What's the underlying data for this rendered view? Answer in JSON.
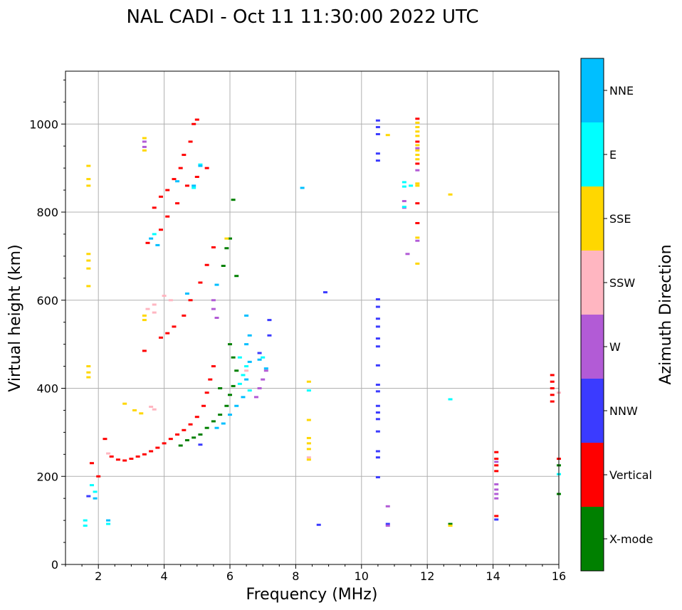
{
  "chart_data": {
    "type": "scatter",
    "title": "NAL CADI - Oct 11 11:30:00 2022 UTC",
    "xlabel": "Frequency (MHz)",
    "ylabel": "Virtual height (km)",
    "xlim": [
      1,
      16
    ],
    "ylim": [
      0,
      1120
    ],
    "xticks": [
      2,
      4,
      6,
      8,
      10,
      12,
      14,
      16
    ],
    "yticks": [
      0,
      200,
      400,
      600,
      800,
      1000
    ],
    "grid": true,
    "colorbar": {
      "title": "Azimuth Direction",
      "categories": [
        {
          "name": "X-mode",
          "color": "#008000"
        },
        {
          "name": "Vertical",
          "color": "#ff0000"
        },
        {
          "name": "NNW",
          "color": "#3b3bff"
        },
        {
          "name": "W",
          "color": "#b25bd6"
        },
        {
          "name": "SSW",
          "color": "#ffb6c1"
        },
        {
          "name": "SSE",
          "color": "#ffd700"
        },
        {
          "name": "E",
          "color": "#00ffff"
        },
        {
          "name": "NNE",
          "color": "#00bfff"
        }
      ]
    },
    "series": [
      {
        "name": "Vertical",
        "color": "#ff0000",
        "points": [
          [
            2.2,
            285
          ],
          [
            2.4,
            245
          ],
          [
            2.6,
            238
          ],
          [
            2.8,
            236
          ],
          [
            3.0,
            240
          ],
          [
            3.2,
            245
          ],
          [
            3.4,
            250
          ],
          [
            3.6,
            257
          ],
          [
            3.8,
            265
          ],
          [
            4.0,
            275
          ],
          [
            4.2,
            285
          ],
          [
            4.4,
            295
          ],
          [
            4.6,
            305
          ],
          [
            4.8,
            318
          ],
          [
            5.0,
            335
          ],
          [
            5.2,
            360
          ],
          [
            5.3,
            390
          ],
          [
            5.4,
            420
          ],
          [
            5.5,
            450
          ],
          [
            3.4,
            485
          ],
          [
            3.9,
            515
          ],
          [
            4.1,
            525
          ],
          [
            4.3,
            540
          ],
          [
            4.6,
            565
          ],
          [
            4.8,
            600
          ],
          [
            5.1,
            640
          ],
          [
            5.3,
            680
          ],
          [
            5.5,
            720
          ],
          [
            3.5,
            730
          ],
          [
            3.9,
            760
          ],
          [
            4.1,
            790
          ],
          [
            4.4,
            820
          ],
          [
            4.7,
            860
          ],
          [
            5.0,
            880
          ],
          [
            5.3,
            900
          ],
          [
            3.7,
            810
          ],
          [
            3.9,
            835
          ],
          [
            4.1,
            850
          ],
          [
            4.3,
            875
          ],
          [
            4.5,
            900
          ],
          [
            4.6,
            930
          ],
          [
            4.8,
            960
          ],
          [
            4.9,
            1000
          ],
          [
            5.0,
            1010
          ],
          [
            11.7,
            1012
          ],
          [
            11.7,
            960
          ],
          [
            11.7,
            910
          ],
          [
            11.7,
            820
          ],
          [
            11.7,
            775
          ],
          [
            14.1,
            255
          ],
          [
            14.1,
            240
          ],
          [
            14.1,
            225
          ],
          [
            14.1,
            212
          ],
          [
            14.1,
            110
          ],
          [
            15.8,
            430
          ],
          [
            15.8,
            415
          ],
          [
            15.8,
            400
          ],
          [
            15.8,
            385
          ],
          [
            15.8,
            370
          ],
          [
            16.0,
            240
          ],
          [
            2.0,
            200
          ],
          [
            1.8,
            230
          ]
        ]
      },
      {
        "name": "X-mode",
        "color": "#008000",
        "points": [
          [
            4.5,
            270
          ],
          [
            4.7,
            282
          ],
          [
            4.9,
            288
          ],
          [
            5.1,
            295
          ],
          [
            5.3,
            310
          ],
          [
            5.5,
            325
          ],
          [
            5.7,
            340
          ],
          [
            5.9,
            360
          ],
          [
            6.0,
            385
          ],
          [
            6.1,
            405
          ],
          [
            6.2,
            440
          ],
          [
            6.1,
            470
          ],
          [
            6.0,
            500
          ],
          [
            6.0,
            740
          ],
          [
            5.9,
            718
          ],
          [
            5.8,
            678
          ],
          [
            6.1,
            828
          ],
          [
            6.2,
            655
          ],
          [
            12.7,
            92
          ],
          [
            16.0,
            160
          ],
          [
            16.0,
            225
          ],
          [
            5.7,
            400
          ]
        ]
      },
      {
        "name": "NNW",
        "color": "#3b3bff",
        "points": [
          [
            10.5,
            1008
          ],
          [
            10.5,
            993
          ],
          [
            10.5,
            977
          ],
          [
            10.5,
            933
          ],
          [
            10.5,
            917
          ],
          [
            10.5,
            602
          ],
          [
            10.5,
            585
          ],
          [
            10.5,
            558
          ],
          [
            10.5,
            540
          ],
          [
            10.5,
            513
          ],
          [
            10.5,
            495
          ],
          [
            10.5,
            452
          ],
          [
            10.5,
            408
          ],
          [
            10.5,
            393
          ],
          [
            10.5,
            360
          ],
          [
            10.5,
            345
          ],
          [
            10.5,
            330
          ],
          [
            10.5,
            302
          ],
          [
            10.5,
            257
          ],
          [
            10.5,
            243
          ],
          [
            10.5,
            198
          ],
          [
            8.9,
            618
          ],
          [
            8.7,
            90
          ],
          [
            14.1,
            102
          ],
          [
            7.2,
            555
          ],
          [
            7.2,
            520
          ],
          [
            6.9,
            480
          ],
          [
            5.1,
            272
          ],
          [
            1.7,
            155
          ],
          [
            10.8,
            92
          ]
        ]
      },
      {
        "name": "W",
        "color": "#b25bd6",
        "points": [
          [
            5.5,
            600
          ],
          [
            5.5,
            580
          ],
          [
            5.6,
            560
          ],
          [
            6.8,
            380
          ],
          [
            6.9,
            400
          ],
          [
            7.0,
            420
          ],
          [
            7.1,
            440
          ],
          [
            11.3,
            825
          ],
          [
            11.3,
            810
          ],
          [
            11.4,
            705
          ],
          [
            11.7,
            945
          ],
          [
            11.7,
            895
          ],
          [
            11.7,
            735
          ],
          [
            14.1,
            182
          ],
          [
            14.1,
            170
          ],
          [
            14.1,
            160
          ],
          [
            14.1,
            150
          ],
          [
            14.1,
            233
          ],
          [
            10.8,
            132
          ],
          [
            10.8,
            88
          ],
          [
            3.4,
            960
          ],
          [
            3.4,
            948
          ]
        ]
      },
      {
        "name": "SSW",
        "color": "#ffb6c1",
        "points": [
          [
            3.5,
            580
          ],
          [
            3.7,
            590
          ],
          [
            3.7,
            572
          ],
          [
            4.0,
            610
          ],
          [
            4.2,
            600
          ],
          [
            3.6,
            358
          ],
          [
            3.7,
            352
          ],
          [
            2.3,
            252
          ],
          [
            8.4,
            243
          ],
          [
            16.0,
            390
          ],
          [
            6.5,
            440
          ]
        ]
      },
      {
        "name": "SSE",
        "color": "#ffd700",
        "points": [
          [
            11.7,
            1003
          ],
          [
            11.7,
            993
          ],
          [
            11.7,
            983
          ],
          [
            11.7,
            973
          ],
          [
            11.7,
            952
          ],
          [
            11.7,
            940
          ],
          [
            11.7,
            930
          ],
          [
            11.7,
            920
          ],
          [
            11.7,
            865
          ],
          [
            11.7,
            860
          ],
          [
            11.7,
            742
          ],
          [
            11.7,
            683
          ],
          [
            12.7,
            840
          ],
          [
            12.7,
            88
          ],
          [
            8.4,
            415
          ],
          [
            8.4,
            328
          ],
          [
            8.4,
            287
          ],
          [
            8.4,
            275
          ],
          [
            8.4,
            262
          ],
          [
            8.4,
            238
          ],
          [
            10.8,
            975
          ],
          [
            1.7,
            905
          ],
          [
            1.7,
            875
          ],
          [
            1.7,
            860
          ],
          [
            1.7,
            705
          ],
          [
            1.7,
            690
          ],
          [
            1.7,
            672
          ],
          [
            1.7,
            632
          ],
          [
            1.7,
            450
          ],
          [
            1.7,
            436
          ],
          [
            1.7,
            425
          ],
          [
            3.1,
            350
          ],
          [
            3.3,
            343
          ],
          [
            2.8,
            365
          ],
          [
            3.4,
            968
          ],
          [
            3.4,
            940
          ],
          [
            3.4,
            565
          ],
          [
            3.4,
            555
          ],
          [
            5.9,
            740
          ]
        ]
      },
      {
        "name": "E",
        "color": "#00ffff",
        "points": [
          [
            11.3,
            868
          ],
          [
            11.3,
            858
          ],
          [
            11.3,
            812
          ],
          [
            11.5,
            860
          ],
          [
            12.7,
            375
          ],
          [
            8.4,
            395
          ],
          [
            6.3,
            410
          ],
          [
            6.4,
            430
          ],
          [
            6.5,
            450
          ],
          [
            6.3,
            470
          ],
          [
            6.6,
            395
          ],
          [
            7.0,
            470
          ],
          [
            5.1,
            908
          ],
          [
            1.6,
            100
          ],
          [
            1.6,
            88
          ],
          [
            2.3,
            92
          ],
          [
            1.8,
            180
          ],
          [
            1.9,
            165
          ],
          [
            3.7,
            750
          ],
          [
            4.9,
            855
          ],
          [
            16.0,
            205
          ]
        ]
      },
      {
        "name": "NNE",
        "color": "#00bfff",
        "points": [
          [
            5.6,
            310
          ],
          [
            5.8,
            320
          ],
          [
            6.0,
            340
          ],
          [
            6.2,
            360
          ],
          [
            6.4,
            380
          ],
          [
            6.5,
            420
          ],
          [
            6.6,
            460
          ],
          [
            6.5,
            500
          ],
          [
            6.6,
            520
          ],
          [
            6.5,
            565
          ],
          [
            6.9,
            465
          ],
          [
            7.1,
            445
          ],
          [
            8.2,
            855
          ],
          [
            4.9,
            860
          ],
          [
            5.1,
            905
          ],
          [
            4.4,
            870
          ],
          [
            3.6,
            740
          ],
          [
            3.8,
            725
          ],
          [
            4.7,
            615
          ],
          [
            5.6,
            635
          ],
          [
            1.9,
            150
          ],
          [
            2.3,
            100
          ]
        ]
      }
    ]
  }
}
